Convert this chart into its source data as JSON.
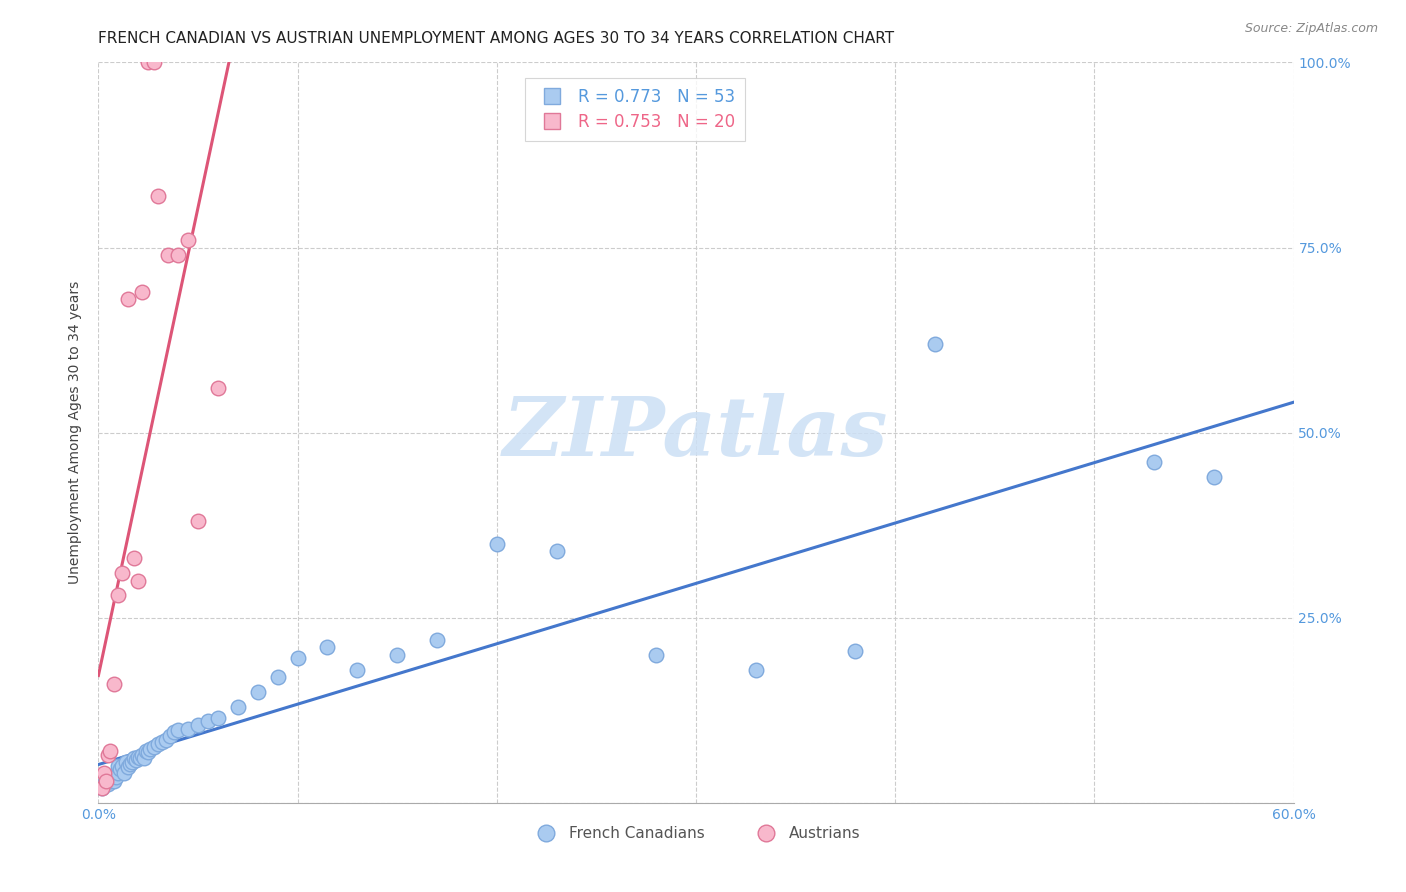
{
  "title": "FRENCH CANADIAN VS AUSTRIAN UNEMPLOYMENT AMONG AGES 30 TO 34 YEARS CORRELATION CHART",
  "source": "Source: ZipAtlas.com",
  "ylabel_left": "Unemployment Among Ages 30 to 34 years",
  "x_min": 0.0,
  "x_max": 0.6,
  "y_min": 0.0,
  "y_max": 1.0,
  "blue_color": "#aacbf0",
  "blue_edge_color": "#80aadd",
  "pink_color": "#f8b8cc",
  "pink_edge_color": "#e07898",
  "blue_line_color": "#4477cc",
  "pink_line_color": "#dd5577",
  "label_color_blue": "#5599dd",
  "label_color_pink": "#ee6688",
  "label_color_axis": "#5599dd",
  "watermark_color": "#cce0f5",
  "R_blue": 0.773,
  "N_blue": 53,
  "R_pink": 0.753,
  "N_pink": 20,
  "fc_x": [
    0.002,
    0.003,
    0.004,
    0.005,
    0.006,
    0.007,
    0.008,
    0.009,
    0.01,
    0.01,
    0.011,
    0.012,
    0.013,
    0.014,
    0.015,
    0.016,
    0.017,
    0.018,
    0.019,
    0.02,
    0.021,
    0.022,
    0.023,
    0.024,
    0.025,
    0.026,
    0.028,
    0.03,
    0.032,
    0.034,
    0.036,
    0.038,
    0.04,
    0.045,
    0.05,
    0.055,
    0.06,
    0.07,
    0.08,
    0.09,
    0.1,
    0.115,
    0.13,
    0.15,
    0.17,
    0.2,
    0.23,
    0.28,
    0.33,
    0.38,
    0.42,
    0.53,
    0.56
  ],
  "fc_y": [
    0.02,
    0.025,
    0.03,
    0.025,
    0.03,
    0.035,
    0.03,
    0.035,
    0.04,
    0.05,
    0.045,
    0.05,
    0.04,
    0.055,
    0.048,
    0.052,
    0.055,
    0.06,
    0.058,
    0.062,
    0.06,
    0.065,
    0.06,
    0.07,
    0.068,
    0.072,
    0.075,
    0.08,
    0.082,
    0.085,
    0.09,
    0.095,
    0.098,
    0.1,
    0.105,
    0.11,
    0.115,
    0.13,
    0.15,
    0.17,
    0.195,
    0.21,
    0.18,
    0.2,
    0.22,
    0.35,
    0.34,
    0.2,
    0.18,
    0.205,
    0.62,
    0.46,
    0.44
  ],
  "au_x": [
    0.002,
    0.003,
    0.004,
    0.005,
    0.006,
    0.008,
    0.01,
    0.012,
    0.015,
    0.018,
    0.02,
    0.022,
    0.025,
    0.028,
    0.03,
    0.035,
    0.04,
    0.045,
    0.05,
    0.06
  ],
  "au_y": [
    0.02,
    0.04,
    0.03,
    0.065,
    0.07,
    0.16,
    0.28,
    0.31,
    0.68,
    0.33,
    0.3,
    0.69,
    1.0,
    1.0,
    0.82,
    0.74,
    0.74,
    0.76,
    0.38,
    0.56
  ],
  "grid_color": "#cccccc",
  "background_color": "#ffffff",
  "title_fontsize": 11,
  "ylabel_fontsize": 10,
  "tick_fontsize": 10,
  "legend_fontsize": 12
}
